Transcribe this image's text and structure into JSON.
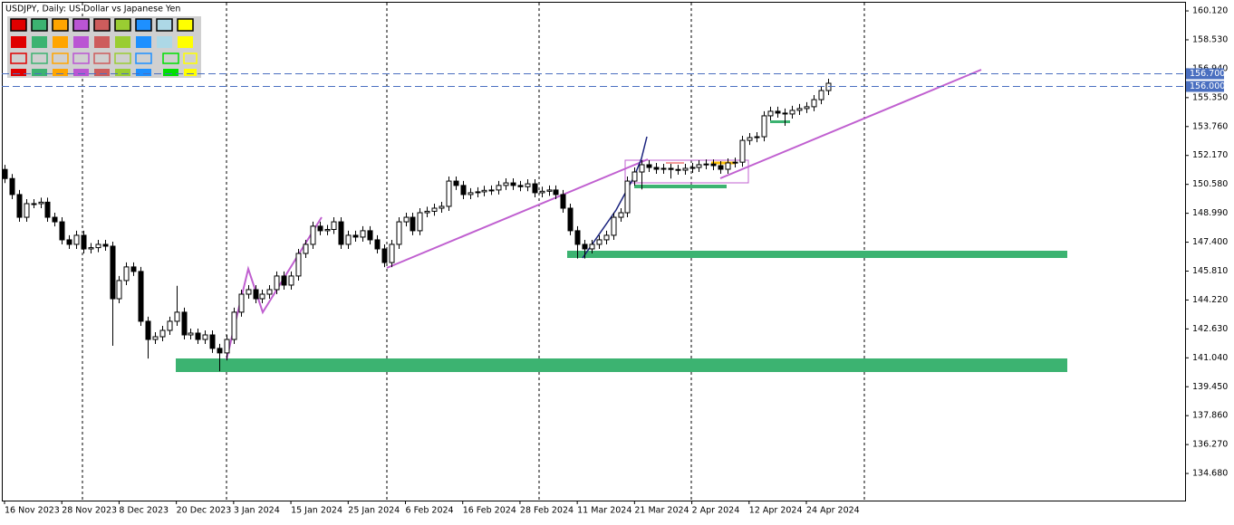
{
  "chart_data": {
    "type": "candlestick",
    "title": "USDJPY, Daily:  US Dollar vs Japanese Yen",
    "open": [
      151.4,
      150.9,
      150.02,
      148.77,
      149.52,
      149.52,
      149.6,
      148.77,
      148.52,
      147.53,
      147.28,
      147.78,
      147.03,
      147.1,
      147.28,
      147.18,
      144.29,
      145.29,
      146.04,
      145.79,
      143.05,
      142.05,
      142.2,
      142.55,
      143.05,
      143.55,
      142.3,
      142.4,
      142.05,
      142.3,
      141.56,
      141.31,
      142.05,
      143.55,
      144.54,
      144.79,
      144.29,
      144.54,
      144.79,
      145.54,
      145.04,
      145.54,
      146.78,
      147.28,
      148.28,
      148.03,
      148.1,
      148.52,
      147.28,
      147.78,
      147.68,
      148.03,
      147.53,
      147.03,
      146.28,
      147.28,
      148.52,
      148.77,
      148.03,
      149.02,
      149.1,
      149.27,
      149.37,
      150.76,
      150.52,
      150.02,
      150.12,
      150.17,
      150.25,
      150.27,
      150.52,
      150.66,
      150.52,
      150.45,
      150.61,
      150.12,
      150.2,
      150.27,
      150.02,
      149.27,
      148.03,
      147.28,
      147.03,
      147.28,
      147.53,
      147.78,
      148.77,
      149.02,
      150.76,
      151.26,
      151.66,
      151.51,
      151.41,
      151.46,
      151.4,
      151.36,
      151.46,
      151.51,
      151.66,
      151.7,
      151.61,
      151.41,
      151.76,
      151.8,
      153.0,
      153.15,
      153.2,
      154.35,
      154.6,
      154.5,
      154.45,
      154.65,
      154.75,
      154.85,
      155.24,
      155.74
    ],
    "high": [
      151.65,
      151.15,
      150.27,
      149.77,
      149.77,
      149.85,
      149.85,
      149.02,
      148.77,
      147.78,
      148.03,
      148.03,
      147.35,
      147.53,
      147.53,
      147.43,
      145.54,
      146.29,
      146.29,
      146.04,
      143.3,
      142.45,
      142.8,
      143.3,
      145.0,
      143.8,
      142.65,
      142.65,
      142.55,
      142.55,
      141.81,
      142.3,
      143.8,
      144.79,
      145.04,
      145.04,
      144.79,
      145.04,
      145.79,
      145.79,
      145.79,
      147.03,
      147.53,
      148.53,
      148.53,
      148.35,
      148.77,
      148.77,
      148.03,
      148.03,
      148.28,
      148.28,
      147.78,
      147.28,
      147.53,
      148.77,
      149.02,
      149.02,
      149.27,
      149.35,
      149.52,
      149.62,
      151.01,
      151.01,
      150.77,
      150.37,
      150.42,
      150.5,
      150.52,
      150.77,
      150.91,
      150.91,
      150.77,
      150.86,
      150.86,
      150.45,
      150.52,
      150.52,
      150.27,
      149.52,
      148.28,
      147.53,
      147.53,
      147.78,
      148.03,
      149.02,
      149.27,
      151.01,
      151.51,
      151.91,
      151.91,
      151.76,
      151.71,
      151.71,
      151.65,
      151.71,
      151.76,
      151.91,
      151.95,
      151.95,
      151.86,
      152.01,
      152.05,
      153.25,
      153.4,
      153.45,
      154.6,
      154.85,
      154.85,
      154.75,
      154.9,
      155.0,
      155.1,
      155.49,
      155.99,
      156.39
    ],
    "low": [
      150.65,
      149.77,
      148.52,
      148.52,
      149.27,
      149.27,
      148.52,
      148.27,
      147.28,
      147.03,
      147.03,
      146.78,
      146.78,
      146.85,
      146.93,
      141.7,
      144.04,
      145.04,
      145.54,
      142.8,
      141.0,
      141.8,
      141.95,
      142.3,
      142.8,
      142.05,
      142.05,
      141.8,
      141.8,
      141.31,
      140.3,
      140.9,
      141.8,
      143.3,
      144.29,
      144.04,
      144.04,
      144.29,
      144.54,
      144.79,
      144.79,
      145.29,
      146.53,
      147.03,
      147.78,
      147.78,
      147.85,
      147.03,
      147.03,
      147.43,
      147.43,
      147.28,
      146.78,
      146.03,
      146.03,
      147.03,
      148.27,
      147.78,
      147.78,
      148.77,
      148.85,
      149.02,
      149.12,
      150.27,
      149.77,
      149.77,
      149.87,
      149.92,
      150.0,
      150.02,
      150.27,
      150.27,
      150.2,
      150.2,
      149.87,
      149.87,
      149.95,
      149.77,
      149.02,
      147.78,
      146.5,
      146.5,
      146.78,
      147.03,
      147.28,
      147.53,
      148.52,
      148.77,
      150.51,
      150.3,
      151.26,
      151.16,
      151.16,
      150.9,
      151.11,
      151.11,
      151.21,
      151.26,
      151.41,
      151.36,
      151.16,
      151.16,
      151.51,
      151.55,
      152.75,
      152.9,
      152.95,
      154.1,
      154.25,
      153.8,
      154.2,
      154.4,
      154.5,
      154.6,
      154.99,
      155.49
    ],
    "close": [
      150.9,
      150.02,
      148.77,
      149.52,
      149.52,
      149.6,
      148.77,
      148.52,
      147.53,
      147.28,
      147.78,
      147.03,
      147.1,
      147.28,
      147.18,
      144.29,
      145.29,
      146.04,
      145.79,
      143.05,
      142.05,
      142.2,
      142.55,
      143.05,
      143.55,
      142.3,
      142.4,
      142.05,
      142.3,
      141.56,
      141.31,
      142.05,
      143.55,
      144.54,
      144.79,
      144.29,
      144.54,
      144.79,
      145.54,
      145.04,
      145.54,
      146.78,
      147.28,
      148.28,
      148.03,
      148.1,
      148.52,
      147.28,
      147.78,
      147.68,
      148.03,
      147.53,
      147.03,
      146.28,
      147.28,
      148.52,
      148.77,
      148.03,
      149.02,
      149.1,
      149.27,
      149.37,
      150.76,
      150.52,
      150.02,
      150.12,
      150.17,
      150.25,
      150.27,
      150.52,
      150.66,
      150.52,
      150.45,
      150.61,
      150.12,
      150.2,
      150.27,
      150.02,
      149.27,
      148.03,
      147.28,
      147.03,
      147.28,
      147.53,
      147.78,
      148.77,
      149.02,
      150.76,
      151.26,
      151.66,
      151.51,
      151.41,
      151.46,
      151.4,
      151.36,
      151.46,
      151.51,
      151.66,
      151.7,
      151.61,
      151.41,
      151.76,
      151.8,
      153.0,
      153.15,
      153.2,
      154.35,
      154.6,
      154.5,
      154.45,
      154.65,
      154.75,
      154.85,
      155.24,
      155.74,
      156.14
    ],
    "xlim": [
      -0.38,
      164.9
    ],
    "xticks": [
      {
        "value": 0,
        "label": "16 Nov 2023"
      },
      {
        "value": 8,
        "label": "28 Nov 2023"
      },
      {
        "value": 16,
        "label": "8 Dec 2023"
      },
      {
        "value": 24,
        "label": "20 Dec 2023"
      },
      {
        "value": 32,
        "label": "3 Jan 2024"
      },
      {
        "value": 40,
        "label": "15 Jan 2024"
      },
      {
        "value": 48,
        "label": "25 Jan 2024"
      },
      {
        "value": 56,
        "label": "6 Feb 2024"
      },
      {
        "value": 64,
        "label": "16 Feb 2024"
      },
      {
        "value": 72,
        "label": "28 Feb 2024"
      },
      {
        "value": 80,
        "label": "11 Mar 2024"
      },
      {
        "value": 88,
        "label": "21 Mar 2024"
      },
      {
        "value": 96,
        "label": "2 Apr 2024"
      },
      {
        "value": 104,
        "label": "12 Apr 2024"
      },
      {
        "value": 112,
        "label": "24 Apr 2024"
      }
    ],
    "ylim": [
      133.19,
      160.62
    ],
    "yticks": [
      {
        "value": 160.12,
        "label": "160.120"
      },
      {
        "value": 158.53,
        "label": "158.530"
      },
      {
        "value": 156.94,
        "label": "156.940"
      },
      {
        "value": 155.35,
        "label": "155.350"
      },
      {
        "value": 153.76,
        "label": "153.760"
      },
      {
        "value": 152.17,
        "label": "152.170"
      },
      {
        "value": 150.58,
        "label": "150.580"
      },
      {
        "value": 148.99,
        "label": "148.990"
      },
      {
        "value": 147.4,
        "label": "147.400"
      },
      {
        "value": 145.81,
        "label": "145.810"
      },
      {
        "value": 144.22,
        "label": "144.220"
      },
      {
        "value": 142.63,
        "label": "142.630"
      },
      {
        "value": 141.04,
        "label": "141.040"
      },
      {
        "value": 139.45,
        "label": "139.450"
      },
      {
        "value": 137.86,
        "label": "137.860"
      },
      {
        "value": 136.27,
        "label": "136.270"
      },
      {
        "value": 134.68,
        "label": "134.680"
      }
    ],
    "price_lines": [
      {
        "value": 156.7,
        "label": "156.700"
      },
      {
        "value": 156.0,
        "label": "156.000"
      }
    ],
    "up_color": "#ffffff",
    "down_color": "#000000",
    "price_line_color": "#4a6fc0"
  }
}
